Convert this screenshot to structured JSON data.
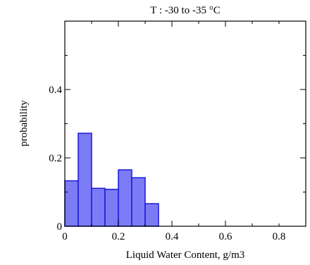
{
  "chart_data": {
    "type": "bar",
    "title": "T :  -30 to -35 °C",
    "xlabel": "Liquid Water Content, g/m3",
    "ylabel": "probability",
    "xlim": [
      0,
      0.9
    ],
    "ylim": [
      0,
      0.6
    ],
    "xticks": [
      0,
      0.2,
      0.4,
      0.6,
      0.8
    ],
    "xtick_labels": [
      "0",
      "0.2",
      "0.4",
      "0.6",
      "0.8"
    ],
    "yticks": [
      0,
      0.2,
      0.4
    ],
    "ytick_labels": [
      "0",
      "0.2",
      "0.4"
    ],
    "bin_width": 0.05,
    "bins": [
      {
        "x0": 0.0,
        "x1": 0.05,
        "value": 0.133
      },
      {
        "x0": 0.05,
        "x1": 0.1,
        "value": 0.272
      },
      {
        "x0": 0.1,
        "x1": 0.15,
        "value": 0.111
      },
      {
        "x0": 0.15,
        "x1": 0.2,
        "value": 0.108
      },
      {
        "x0": 0.2,
        "x1": 0.25,
        "value": 0.165
      },
      {
        "x0": 0.25,
        "x1": 0.3,
        "value": 0.142
      },
      {
        "x0": 0.3,
        "x1": 0.35,
        "value": 0.066
      }
    ],
    "bar_fill": "#7b7bf5",
    "bar_stroke": "#1a1ad8",
    "grid": false,
    "legend": "none"
  }
}
